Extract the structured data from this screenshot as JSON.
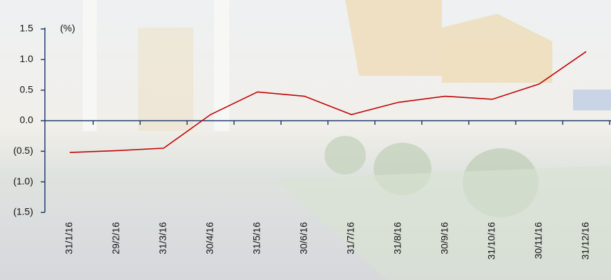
{
  "chart_data": {
    "type": "line",
    "unit_label": "(%)",
    "categories": [
      "31/1/16",
      "29/2/16",
      "31/3/16",
      "30/4/16",
      "31/5/16",
      "30/6/16",
      "31/7/16",
      "31/8/16",
      "30/9/16",
      "31/10/16",
      "30/11/16",
      "31/12/16"
    ],
    "values": [
      -0.52,
      -0.49,
      -0.45,
      0.1,
      0.47,
      0.4,
      0.1,
      0.3,
      0.4,
      0.35,
      0.6,
      1.13
    ],
    "color": "#c00000",
    "ylim": [
      -1.5,
      1.5
    ],
    "yticks": [
      {
        "value": -1.5,
        "label": "(1.5)"
      },
      {
        "value": -1.0,
        "label": "(1.0)"
      },
      {
        "value": -0.5,
        "label": "(0.5)"
      },
      {
        "value": 0,
        "label": "0.0"
      },
      0.5,
      {
        "value": 1.0,
        "label": "1.0"
      },
      1.5
    ]
  }
}
